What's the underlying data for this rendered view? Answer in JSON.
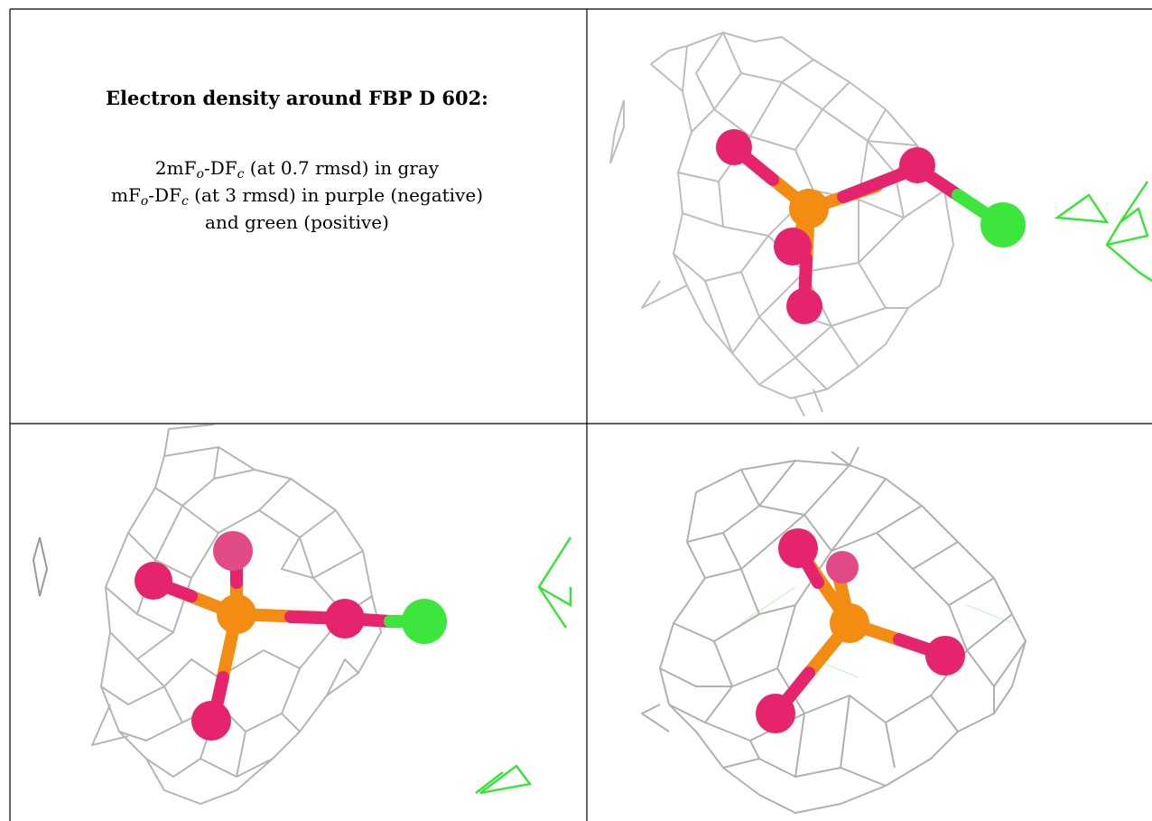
{
  "caption": {
    "title": "Electron density around FBP D 602:",
    "line1_pre": "2mF",
    "line1_sub1": "o",
    "line1_mid": "-DF",
    "line1_sub2": "c",
    "line1_post": " (at 0.7 rmsd) in gray",
    "line2_pre": "mF",
    "line2_sub1": "o",
    "line2_mid": "-DF",
    "line2_sub2": "c",
    "line2_post": " (at 3 rmsd) in purple (negative)",
    "line3": "and green (positive)"
  },
  "colors": {
    "mesh_gray": "#bdbdbd",
    "mesh_positive": "#33e633",
    "phosphorus": "#f28c12",
    "oxygen": "#e6246e",
    "chlorine_like": "#3de63d"
  },
  "panels": [
    {
      "name": "view-top-right"
    },
    {
      "name": "view-bottom-left"
    },
    {
      "name": "view-bottom-right"
    }
  ]
}
